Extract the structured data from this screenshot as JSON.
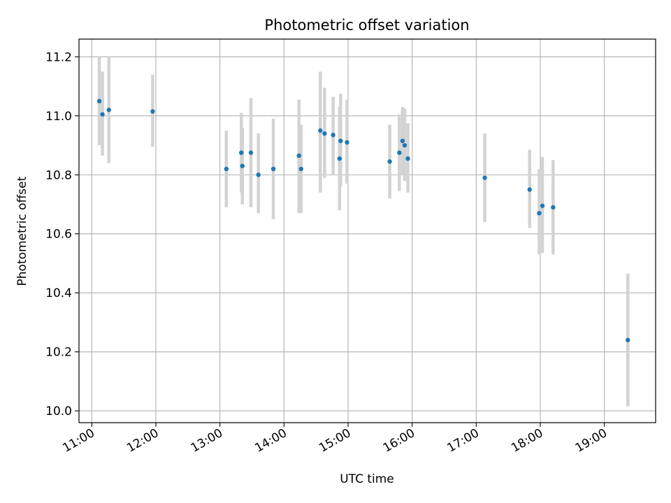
{
  "chart_data": {
    "type": "scatter",
    "title": "Photometric offset variation",
    "xlabel": "UTC time",
    "ylabel": "Photometric offset",
    "x_tick_labels": [
      "11:00",
      "12:00",
      "13:00",
      "14:00",
      "15:00",
      "16:00",
      "17:00",
      "18:00",
      "19:00"
    ],
    "x_ticks": [
      "11:00",
      "12:00",
      "13:00",
      "14:00",
      "15:00",
      "16:00",
      "17:00",
      "18:00",
      "19:00"
    ],
    "y_tick_labels": [
      "10.0",
      "10.2",
      "10.4",
      "10.6",
      "10.8",
      "11.0",
      "11.2"
    ],
    "y_ticks": [
      10.0,
      10.2,
      10.4,
      10.6,
      10.8,
      11.0,
      11.2
    ],
    "xlim": [
      "10:48",
      "19:48"
    ],
    "ylim": [
      9.96,
      11.26
    ],
    "grid": true,
    "x_tick_rotation": "30 degrees",
    "marker_color": "#1f77b4",
    "errorbar_color": "#d3d3d3",
    "points": [
      {
        "t": "11:07",
        "y": 11.05,
        "lo": 10.9,
        "hi": 11.2
      },
      {
        "t": "11:10",
        "y": 11.005,
        "lo": 10.865,
        "hi": 11.15
      },
      {
        "t": "11:16",
        "y": 11.02,
        "lo": 10.84,
        "hi": 11.2
      },
      {
        "t": "11:57",
        "y": 11.015,
        "lo": 10.895,
        "hi": 11.14
      },
      {
        "t": "13:06",
        "y": 10.82,
        "lo": 10.69,
        "hi": 10.95
      },
      {
        "t": "13:20",
        "y": 10.875,
        "lo": 10.74,
        "hi": 11.01
      },
      {
        "t": "13:21",
        "y": 10.83,
        "lo": 10.7,
        "hi": 10.96
      },
      {
        "t": "13:29",
        "y": 10.875,
        "lo": 10.69,
        "hi": 11.06
      },
      {
        "t": "13:36",
        "y": 10.8,
        "lo": 10.67,
        "hi": 10.94
      },
      {
        "t": "13:50",
        "y": 10.82,
        "lo": 10.65,
        "hi": 10.99
      },
      {
        "t": "14:14",
        "y": 10.865,
        "lo": 10.67,
        "hi": 11.055
      },
      {
        "t": "14:16",
        "y": 10.82,
        "lo": 10.67,
        "hi": 10.97
      },
      {
        "t": "14:34",
        "y": 10.95,
        "lo": 10.74,
        "hi": 11.15
      },
      {
        "t": "14:38",
        "y": 10.94,
        "lo": 10.79,
        "hi": 11.095
      },
      {
        "t": "14:46",
        "y": 10.935,
        "lo": 10.8,
        "hi": 11.065
      },
      {
        "t": "14:52",
        "y": 10.855,
        "lo": 10.68,
        "hi": 11.03
      },
      {
        "t": "14:53",
        "y": 10.915,
        "lo": 10.76,
        "hi": 11.075
      },
      {
        "t": "14:59",
        "y": 10.91,
        "lo": 10.77,
        "hi": 11.055
      },
      {
        "t": "15:39",
        "y": 10.845,
        "lo": 10.72,
        "hi": 10.97
      },
      {
        "t": "15:48",
        "y": 10.875,
        "lo": 10.745,
        "hi": 11.005
      },
      {
        "t": "15:51",
        "y": 10.915,
        "lo": 10.8,
        "hi": 11.03
      },
      {
        "t": "15:53",
        "y": 10.9,
        "lo": 10.78,
        "hi": 11.025
      },
      {
        "t": "15:56",
        "y": 10.855,
        "lo": 10.74,
        "hi": 10.975
      },
      {
        "t": "17:08",
        "y": 10.79,
        "lo": 10.64,
        "hi": 10.94
      },
      {
        "t": "17:50",
        "y": 10.75,
        "lo": 10.62,
        "hi": 10.885
      },
      {
        "t": "17:59",
        "y": 10.67,
        "lo": 10.53,
        "hi": 10.82
      },
      {
        "t": "18:02",
        "y": 10.695,
        "lo": 10.535,
        "hi": 10.86
      },
      {
        "t": "18:12",
        "y": 10.69,
        "lo": 10.53,
        "hi": 10.85
      },
      {
        "t": "19:22",
        "y": 10.24,
        "lo": 10.015,
        "hi": 10.465
      }
    ]
  }
}
